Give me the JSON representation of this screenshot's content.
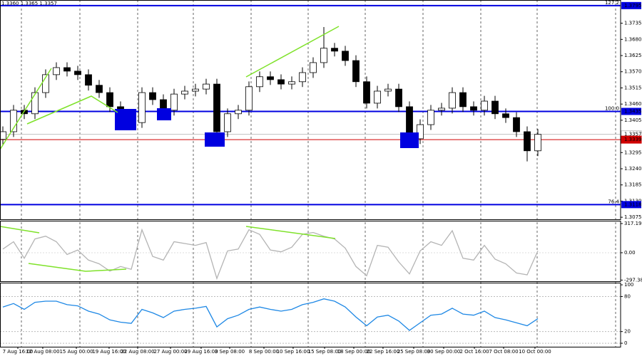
{
  "chart_data": [
    {
      "type": "candlestick",
      "ohlc_text": "1.3360 1.3365 1.3357",
      "open": [
        1.334,
        1.3366,
        1.3439,
        1.3427,
        1.3499,
        1.356,
        1.3584,
        1.3572,
        1.356,
        1.3524,
        1.3499,
        1.3451,
        1.3414,
        1.3397,
        1.3499,
        1.3475,
        1.3439,
        1.3494,
        1.3504,
        1.3511,
        1.3528,
        1.3366,
        1.3427,
        1.3439,
        1.3519,
        1.3553,
        1.3543,
        1.3528,
        1.3536,
        1.3567,
        1.3601,
        1.365,
        1.364,
        1.3608,
        1.3536,
        1.3463,
        1.3504,
        1.3511,
        1.3451,
        1.3342,
        1.339,
        1.3439,
        1.3446,
        1.3499,
        1.3451,
        1.3439,
        1.347,
        1.3427,
        1.3414,
        1.3366,
        1.3301
      ],
      "high": [
        1.3384,
        1.3457,
        1.3457,
        1.3517,
        1.3578,
        1.3602,
        1.3602,
        1.359,
        1.3578,
        1.3542,
        1.3517,
        1.3469,
        1.3432,
        1.3517,
        1.3517,
        1.3493,
        1.3512,
        1.3522,
        1.3529,
        1.3546,
        1.3546,
        1.3445,
        1.3457,
        1.3537,
        1.3571,
        1.3571,
        1.3561,
        1.3554,
        1.3585,
        1.3619,
        1.3722,
        1.3668,
        1.3658,
        1.3626,
        1.3554,
        1.3522,
        1.3529,
        1.3529,
        1.3469,
        1.3408,
        1.3457,
        1.3464,
        1.3517,
        1.3517,
        1.3469,
        1.3488,
        1.3488,
        1.3445,
        1.3432,
        1.3384,
        1.3375
      ],
      "low": [
        1.3322,
        1.3348,
        1.3409,
        1.3409,
        1.3481,
        1.3542,
        1.3554,
        1.3542,
        1.3506,
        1.3481,
        1.3433,
        1.3396,
        1.3379,
        1.3379,
        1.3457,
        1.3421,
        1.3421,
        1.3476,
        1.3486,
        1.3493,
        1.334,
        1.3348,
        1.3409,
        1.3421,
        1.3501,
        1.3525,
        1.351,
        1.351,
        1.3518,
        1.3549,
        1.3583,
        1.3622,
        1.359,
        1.3518,
        1.3445,
        1.3445,
        1.3486,
        1.3433,
        1.3324,
        1.3324,
        1.3372,
        1.3421,
        1.3428,
        1.3433,
        1.3421,
        1.3421,
        1.3409,
        1.3396,
        1.3348,
        1.3265,
        1.3283
      ],
      "close": [
        1.3366,
        1.3439,
        1.3427,
        1.3499,
        1.356,
        1.3584,
        1.3572,
        1.356,
        1.3524,
        1.3499,
        1.3451,
        1.3414,
        1.3397,
        1.3499,
        1.3475,
        1.3439,
        1.3494,
        1.3504,
        1.3511,
        1.3528,
        1.3366,
        1.3427,
        1.3439,
        1.3519,
        1.3553,
        1.3543,
        1.3528,
        1.3536,
        1.3567,
        1.3601,
        1.365,
        1.364,
        1.3608,
        1.3536,
        1.3463,
        1.3504,
        1.3511,
        1.3451,
        1.3342,
        1.339,
        1.3439,
        1.3446,
        1.3499,
        1.3451,
        1.3439,
        1.347,
        1.3427,
        1.3414,
        1.3366,
        1.3301,
        1.3357
      ],
      "up_color": "#ffffff",
      "down_color": "#000000",
      "xlim": [
        -0.2667,
        57.7333
      ],
      "ylim": [
        1.3068,
        1.3814
      ],
      "yticks": [
        {
          "value": 1.3735,
          "label": "1.3735"
        },
        {
          "value": 1.368,
          "label": "1.3680"
        },
        {
          "value": 1.3625,
          "label": "1.3625"
        },
        {
          "value": 1.357,
          "label": "1.3570"
        },
        {
          "value": 1.3515,
          "label": "1.3515"
        },
        {
          "value": 1.346,
          "label": "1.3460"
        },
        {
          "value": 1.3405,
          "label": "1.3405"
        },
        {
          "value": 1.3295,
          "label": "1.3295"
        },
        {
          "value": 1.324,
          "label": "1.3240"
        },
        {
          "value": 1.3185,
          "label": "1.3185"
        },
        {
          "value": 1.313,
          "label": "1.3130"
        },
        {
          "value": 1.3075,
          "label": "1.3075"
        }
      ],
      "levels": [
        {
          "name": "127.2",
          "value": 1.3795,
          "label": "1.3795"
        },
        {
          "name": "100.0",
          "value": 1.3435,
          "label": "1.3435"
        },
        {
          "name": "76.4",
          "value": 1.3118,
          "label": "1.3118"
        }
      ],
      "level_color": "#0000e0",
      "price_lines": [
        {
          "value": 1.3357,
          "label": "1.3357",
          "color": "#c0c0c0"
        },
        {
          "value": 1.3339,
          "label": "1.3339",
          "color": "#d00000"
        }
      ]
    },
    {
      "type": "line",
      "values": [
        40,
        120,
        -60,
        150,
        180,
        120,
        -20,
        30,
        -80,
        -120,
        -200,
        -150,
        -180,
        250,
        -40,
        -80,
        120,
        100,
        80,
        110,
        -280,
        20,
        40,
        250,
        200,
        30,
        10,
        60,
        200,
        220,
        180,
        150,
        50,
        -150,
        -250,
        80,
        60,
        -100,
        -230,
        20,
        120,
        80,
        240,
        -60,
        -80,
        80,
        -70,
        -120,
        -220,
        -240,
        20
      ],
      "color": "#b4b4b4",
      "xlim": [
        -0.2667,
        57.7333
      ],
      "ylim": [
        -310,
        348
      ],
      "yticks": [
        317.1939,
        {
          "value": 0,
          "label": "0.00"
        },
        -297.386
      ]
    },
    {
      "type": "line",
      "values": [
        62,
        68,
        58,
        70,
        72,
        72,
        66,
        64,
        55,
        50,
        40,
        36,
        34,
        58,
        52,
        44,
        55,
        58,
        60,
        63,
        28,
        42,
        48,
        58,
        62,
        58,
        55,
        58,
        66,
        70,
        76,
        72,
        62,
        45,
        30,
        45,
        48,
        38,
        22,
        35,
        48,
        50,
        60,
        50,
        48,
        55,
        44,
        40,
        35,
        30,
        42
      ],
      "color": "#1e88e5",
      "xlim": [
        -0.2667,
        57.7333
      ],
      "ylim": [
        -6,
        103.7
      ],
      "yticks": [
        100,
        80,
        20,
        0
      ],
      "xticks": [
        {
          "value": 1.4,
          "label": "7 Aug 16:00"
        },
        {
          "value": 3.73,
          "label": "12 Aug 08:00"
        },
        {
          "value": 6.87,
          "label": "15 Aug 00:00"
        },
        {
          "value": 9.93,
          "label": "19 Aug 16:00"
        },
        {
          "value": 12.6,
          "label": "22 Aug 08:00"
        },
        {
          "value": 15.67,
          "label": "27 Aug 00:00"
        },
        {
          "value": 18.53,
          "label": "29 Aug 16:00"
        },
        {
          "value": 21.2,
          "label": "3 Sep 08:00"
        },
        {
          "value": 24.4,
          "label": "8 Sep 00:00"
        },
        {
          "value": 27.13,
          "label": "10 Sep 16:00"
        },
        {
          "value": 30.07,
          "label": "15 Sep 08:00"
        },
        {
          "value": 32.8,
          "label": "18 Sep 00:00"
        },
        {
          "value": 35.53,
          "label": "22 Sep 16:00"
        },
        {
          "value": 38.4,
          "label": "25 Sep 08:00"
        },
        {
          "value": 41.2,
          "label": "30 Sep 00:00"
        },
        {
          "value": 44.07,
          "label": "2 Oct 16:00"
        },
        {
          "value": 46.8,
          "label": "7 Oct 08:00"
        },
        {
          "value": 49.73,
          "label": "10 Oct 00:00"
        }
      ]
    }
  ]
}
